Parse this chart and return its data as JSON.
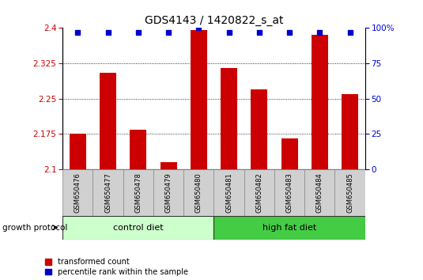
{
  "title": "GDS4143 / 1420822_s_at",
  "samples": [
    "GSM650476",
    "GSM650477",
    "GSM650478",
    "GSM650479",
    "GSM650480",
    "GSM650481",
    "GSM650482",
    "GSM650483",
    "GSM650484",
    "GSM650485"
  ],
  "transformed_count": [
    2.175,
    2.305,
    2.185,
    2.115,
    2.395,
    2.315,
    2.27,
    2.165,
    2.385,
    2.26
  ],
  "percentile_rank": [
    97,
    97,
    97,
    97,
    100,
    97,
    97,
    97,
    97,
    97
  ],
  "ylim": [
    2.1,
    2.4
  ],
  "yticks": [
    2.1,
    2.175,
    2.25,
    2.325,
    2.4
  ],
  "ytick_labels": [
    "2.1",
    "2.175",
    "2.25",
    "2.325",
    "2.4"
  ],
  "right_yticks": [
    0,
    25,
    50,
    75,
    100
  ],
  "right_ytick_labels": [
    "0",
    "25",
    "50",
    "75",
    "100%"
  ],
  "bar_color": "#cc0000",
  "dot_color": "#0000cc",
  "grid_lines": [
    2.175,
    2.25,
    2.325
  ],
  "groups": [
    {
      "label": "control diet",
      "start": 0,
      "end": 5,
      "color": "#ccffcc"
    },
    {
      "label": "high fat diet",
      "start": 5,
      "end": 10,
      "color": "#44cc44"
    }
  ],
  "group_label": "growth protocol",
  "legend_items": [
    {
      "label": "transformed count",
      "color": "#cc0000"
    },
    {
      "label": "percentile rank within the sample",
      "color": "#0000cc"
    }
  ],
  "bar_width": 0.55,
  "tick_label_color": "#cc0000",
  "right_tick_color": "#0000cc",
  "bg_color": "#ffffff"
}
